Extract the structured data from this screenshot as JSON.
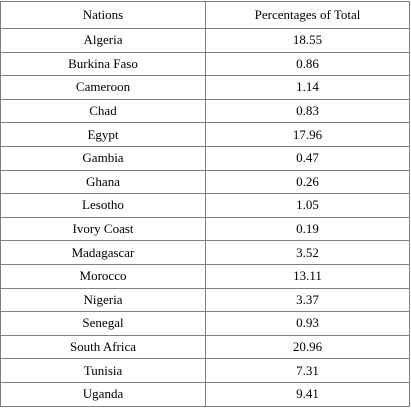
{
  "table": {
    "header": [
      "Nations",
      "Percentages of Total"
    ],
    "rows": [
      [
        "Algeria",
        "18.55"
      ],
      [
        "Burkina Faso",
        "0.86"
      ],
      [
        "Cameroon",
        "1.14"
      ],
      [
        "Chad",
        "0.83"
      ],
      [
        "Egypt",
        "17.96"
      ],
      [
        "Gambia",
        "0.47"
      ],
      [
        "Ghana",
        "0.26"
      ],
      [
        "Lesotho",
        "1.05"
      ],
      [
        "Ivory Coast",
        "0.19"
      ],
      [
        "Madagascar",
        "3.52"
      ],
      [
        "Morocco",
        "13.11"
      ],
      [
        "Nigeria",
        "3.37"
      ],
      [
        "Senegal",
        "0.93"
      ],
      [
        "South Africa",
        "20.96"
      ],
      [
        "Tunisia",
        "7.31"
      ],
      [
        "Uganda",
        "9.41"
      ]
    ]
  }
}
